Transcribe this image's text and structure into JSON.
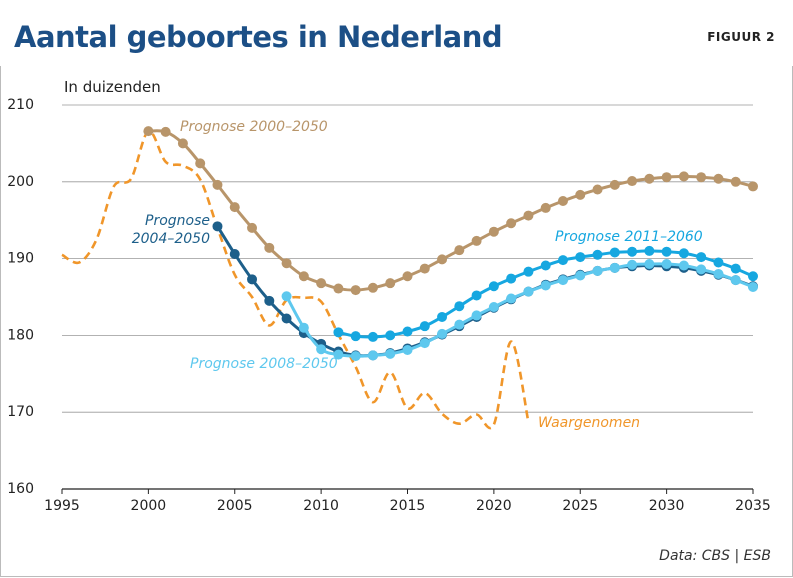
{
  "chart_data": {
    "type": "line",
    "title": "Aantal geboortes in Nederland",
    "figure_label": "FIGUUR 2",
    "y_label": "In duizenden",
    "source": "Data: CBS | ESB",
    "xlim": [
      1995,
      2035
    ],
    "xticks": [
      1995,
      2000,
      2005,
      2010,
      2015,
      2020,
      2025,
      2030,
      2035
    ],
    "ylim": [
      160,
      210
    ],
    "yticks": [
      160,
      170,
      180,
      190,
      200,
      210
    ],
    "grid": true,
    "series": [
      {
        "name": "Waargenomen",
        "color": "#f0962a",
        "style": "dashed",
        "markers": false,
        "x": [
          1995,
          1996,
          1997,
          1998,
          1999,
          2000,
          2001,
          2002,
          2003,
          2004,
          2005,
          2006,
          2007,
          2008,
          2009,
          2010,
          2011,
          2012,
          2013,
          2014,
          2015,
          2016,
          2017,
          2018,
          2019,
          2020,
          2021,
          2022
        ],
        "values": [
          190.5,
          189.5,
          192.5,
          199.4,
          200.4,
          206.6,
          202.6,
          202.1,
          200.3,
          194.0,
          187.9,
          185.0,
          181.3,
          184.6,
          184.9,
          184.4,
          180.1,
          175.9,
          171.3,
          175.2,
          170.5,
          172.5,
          169.8,
          168.5,
          169.7,
          168.4,
          179.2,
          168.7
        ]
      },
      {
        "name": "Prognose 2000–2050",
        "color": "#b8956a",
        "style": "solid",
        "markers": true,
        "x": [
          2000,
          2001,
          2002,
          2003,
          2004,
          2005,
          2006,
          2007,
          2008,
          2009,
          2010,
          2011,
          2012,
          2013,
          2014,
          2015,
          2016,
          2017,
          2018,
          2019,
          2020,
          2021,
          2022,
          2023,
          2024,
          2025,
          2026,
          2027,
          2028,
          2029,
          2030,
          2031,
          2032,
          2033,
          2034,
          2035
        ],
        "values": [
          206.6,
          206.5,
          205.0,
          202.4,
          199.6,
          196.7,
          194.0,
          191.4,
          189.4,
          187.7,
          186.8,
          186.1,
          185.9,
          186.2,
          186.8,
          187.7,
          188.7,
          189.9,
          191.1,
          192.3,
          193.5,
          194.6,
          195.6,
          196.6,
          197.5,
          198.3,
          199.0,
          199.6,
          200.1,
          200.4,
          200.6,
          200.7,
          200.6,
          200.4,
          200.0,
          199.4
        ]
      },
      {
        "name": "Prognose 2004–2050",
        "color": "#1d5f8a",
        "style": "solid",
        "markers": true,
        "x": [
          2004,
          2005,
          2006,
          2007,
          2008,
          2009,
          2010,
          2011,
          2012,
          2013,
          2014,
          2015,
          2016,
          2017,
          2018,
          2019,
          2020,
          2021,
          2022,
          2023,
          2024,
          2025,
          2026,
          2027,
          2028,
          2029,
          2030,
          2031,
          2032,
          2033,
          2034,
          2035
        ],
        "values": [
          194.2,
          190.6,
          187.3,
          184.5,
          182.2,
          180.3,
          178.9,
          177.9,
          177.4,
          177.4,
          177.7,
          178.3,
          179.1,
          180.1,
          181.2,
          182.4,
          183.6,
          184.7,
          185.7,
          186.6,
          187.3,
          187.9,
          188.4,
          188.8,
          189.0,
          189.1,
          189.0,
          188.8,
          188.4,
          187.9,
          187.2,
          186.4
        ]
      },
      {
        "name": "Prognose 2008–2050",
        "color": "#5ec8ee",
        "style": "solid",
        "markers": true,
        "x": [
          2008,
          2009,
          2010,
          2011,
          2012,
          2013,
          2014,
          2015,
          2016,
          2017,
          2018,
          2019,
          2020,
          2021,
          2022,
          2023,
          2024,
          2025,
          2026,
          2027,
          2028,
          2029,
          2030,
          2031,
          2032,
          2033,
          2034,
          2035
        ],
        "values": [
          185.1,
          181.0,
          178.2,
          177.5,
          177.3,
          177.4,
          177.6,
          178.1,
          179.0,
          180.2,
          181.4,
          182.6,
          183.7,
          184.8,
          185.7,
          186.5,
          187.2,
          187.8,
          188.4,
          188.8,
          189.2,
          189.3,
          189.3,
          189.1,
          188.6,
          188.0,
          187.2,
          186.3
        ]
      },
      {
        "name": "Prognose 2011–2060",
        "color": "#16a7e0",
        "style": "solid",
        "markers": true,
        "x": [
          2011,
          2012,
          2013,
          2014,
          2015,
          2016,
          2017,
          2018,
          2019,
          2020,
          2021,
          2022,
          2023,
          2024,
          2025,
          2026,
          2027,
          2028,
          2029,
          2030,
          2031,
          2032,
          2033,
          2034,
          2035
        ],
        "values": [
          180.4,
          179.9,
          179.8,
          180.0,
          180.5,
          181.2,
          182.4,
          183.8,
          185.2,
          186.4,
          187.4,
          188.3,
          189.1,
          189.8,
          190.2,
          190.5,
          190.8,
          190.9,
          191.0,
          190.9,
          190.7,
          190.2,
          189.5,
          188.7,
          187.7
        ]
      }
    ]
  }
}
